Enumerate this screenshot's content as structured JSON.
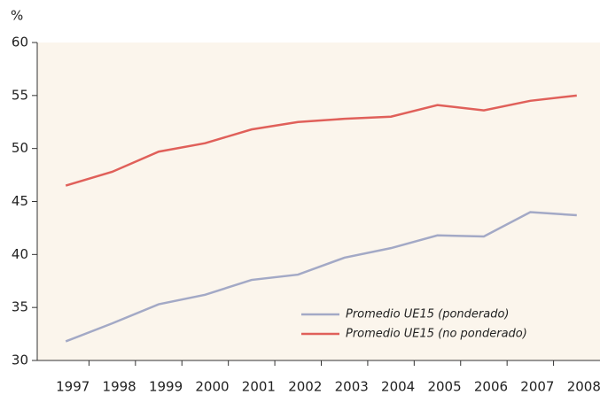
{
  "chart_data": {
    "type": "line",
    "y_unit": "%",
    "categories": [
      "1997",
      "1998",
      "1999",
      "2000",
      "2001",
      "2002",
      "2003",
      "2004",
      "2005",
      "2006",
      "2007",
      "2008"
    ],
    "series": [
      {
        "name": "Promedio UE15 (ponderado)",
        "color": "#a3a9c6",
        "values": [
          31.8,
          33.5,
          35.3,
          36.2,
          37.6,
          38.1,
          39.7,
          40.6,
          41.8,
          41.7,
          44.0,
          43.7
        ]
      },
      {
        "name": "Promedio UE15 (no ponderado)",
        "color": "#e0605a",
        "values": [
          46.5,
          47.8,
          49.7,
          50.5,
          51.8,
          52.5,
          52.8,
          53.0,
          54.1,
          53.6,
          54.5,
          55.0
        ]
      }
    ],
    "ylim": [
      30,
      60
    ],
    "yticks": [
      30,
      35,
      40,
      45,
      50,
      55,
      60
    ],
    "grid": false,
    "legend": "lower right"
  }
}
